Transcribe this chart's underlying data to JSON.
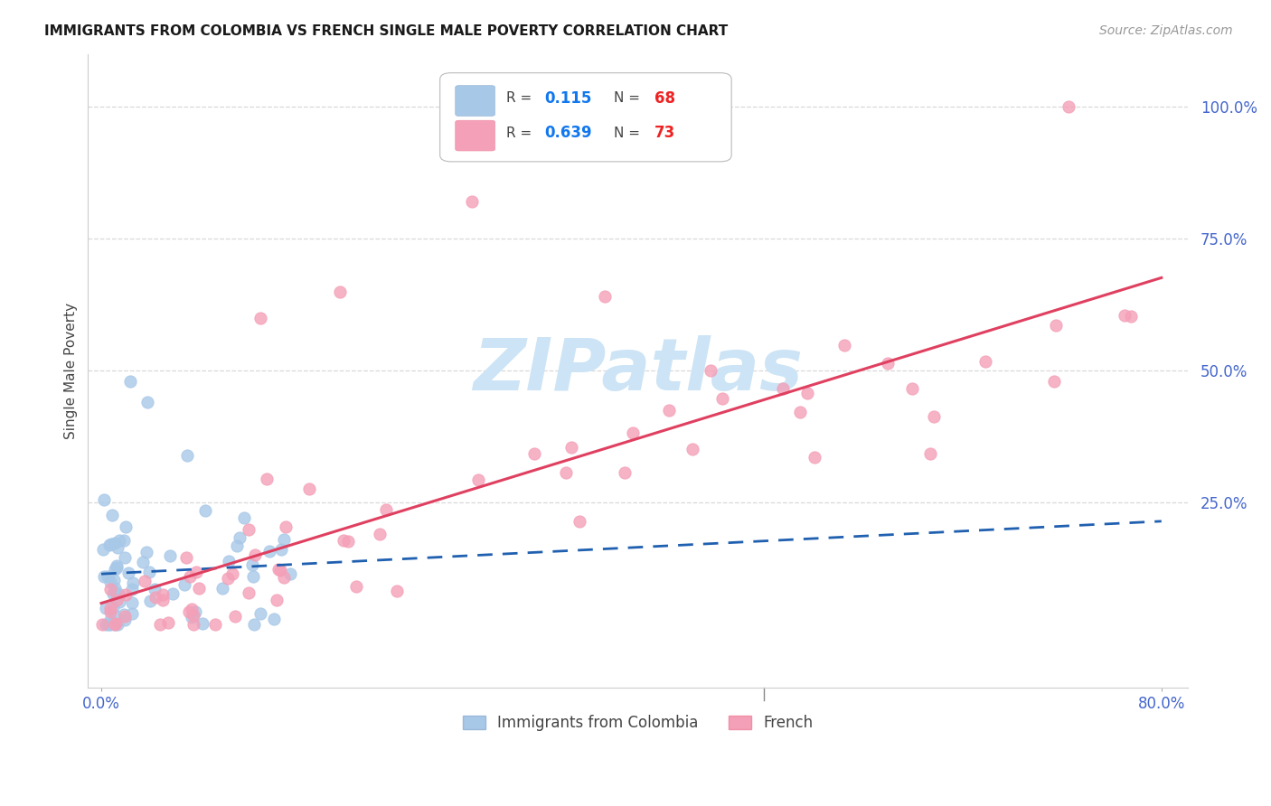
{
  "title": "IMMIGRANTS FROM COLOMBIA VS FRENCH SINGLE MALE POVERTY CORRELATION CHART",
  "source": "Source: ZipAtlas.com",
  "ylabel": "Single Male Poverty",
  "colombia_R": 0.115,
  "colombia_N": 68,
  "french_R": 0.639,
  "french_N": 73,
  "colombia_color": "#a8c8e8",
  "french_color": "#f4a0b8",
  "colombia_line_color": "#2060b0",
  "french_line_color": "#e04060",
  "watermark_text": "ZIPatlas",
  "watermark_color": "#cce4f5",
  "grid_color": "#d8d8d8",
  "tick_color": "#4466cc",
  "background": "#ffffff"
}
